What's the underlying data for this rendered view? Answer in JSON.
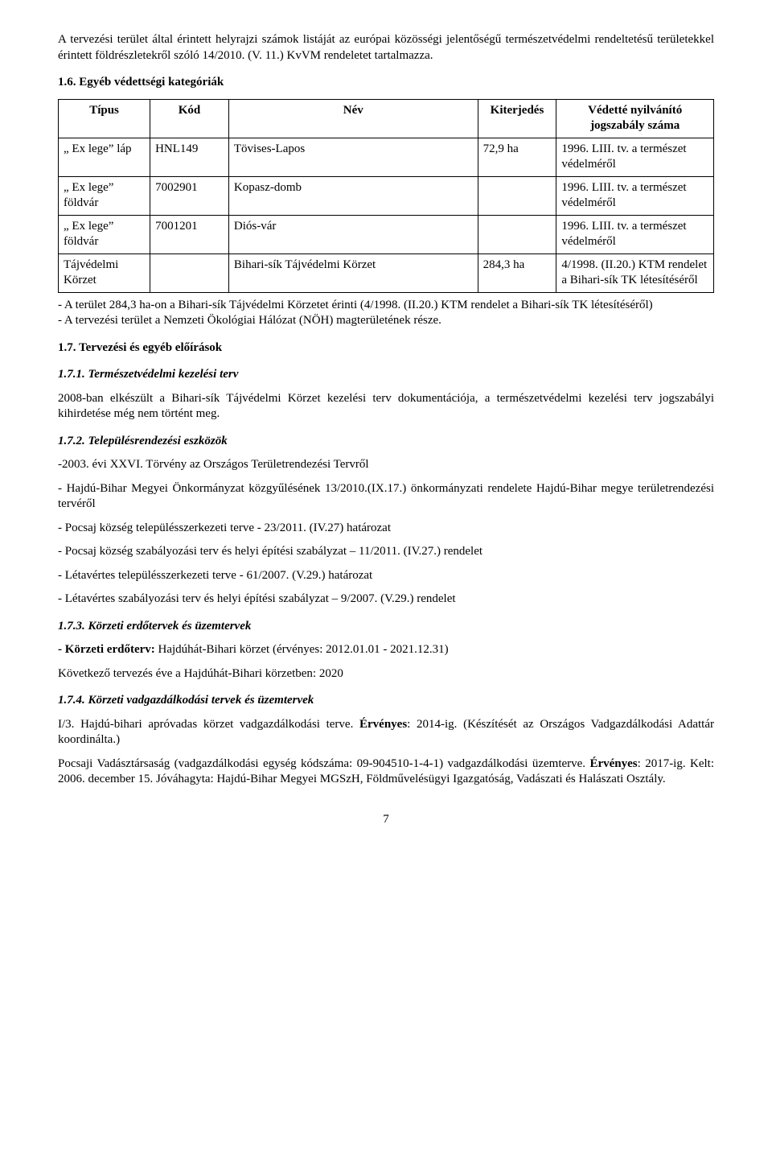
{
  "intro": "A tervezési terület által érintett helyrajzi számok listáját az európai közösségi jelentőségű természetvédelmi rendeltetésű területekkel érintett földrészletekről szóló 14/2010. (V. 11.) KvVM rendeletet tartalmazza.",
  "sec_1_6": "1.6. Egyéb védettségi kategóriák",
  "table": {
    "headers": {
      "tipus": "Típus",
      "kod": "Kód",
      "nev": "Név",
      "kiterjedes": "Kiterjedés",
      "jogszabaly": "Védetté nyilvánító jogszabály száma"
    },
    "rows": [
      {
        "tipus": "„ Ex lege” láp",
        "kod": "HNL149",
        "nev": "Tövises-Lapos",
        "kit": "72,9 ha",
        "jog": "1996. LIII. tv. a természet védelméről"
      },
      {
        "tipus": "„ Ex lege” földvár",
        "kod": "7002901",
        "nev": "Kopasz-domb",
        "kit": "",
        "jog": "1996. LIII. tv. a természet védelméről"
      },
      {
        "tipus": "„ Ex lege” földvár",
        "kod": "7001201",
        "nev": "Diós-vár",
        "kit": "",
        "jog": "1996. LIII. tv. a természet védelméről"
      },
      {
        "tipus": "Tájvédelmi Körzet",
        "kod": "",
        "nev": "Bihari-sík Tájvédelmi Körzet",
        "kit": "284,3 ha",
        "jog": "4/1998. (II.20.) KTM rendelet a Bihari-sík TK létesítéséről"
      }
    ]
  },
  "after_table_p1": "- A terület 284,3 ha-on a Bihari-sík Tájvédelmi Körzetet érinti (4/1998. (II.20.) KTM rendelet a Bihari-sík TK létesítéséről)",
  "after_table_p2": "- A tervezési terület a Nemzeti Ökológiai Hálózat (NÖH) magterületének része.",
  "sec_1_7": "1.7. Tervezési és egyéb előírások",
  "sub_1_7_1": "1.7.1. Természetvédelmi kezelési terv",
  "p_1_7_1": "2008-ban elkészült a Bihari-sík Tájvédelmi Körzet kezelési terv dokumentációja, a természetvédelmi kezelési terv jogszabályi kihirdetése még nem történt meg.",
  "sub_1_7_2": "1.7.2. Településrendezési eszközök",
  "p_1_7_2_a": "-2003. évi XXVI. Törvény az Országos Területrendezési Tervről",
  "p_1_7_2_b": "- Hajdú-Bihar Megyei Önkormányzat közgyűlésének 13/2010.(IX.17.) önkormányzati rendelete Hajdú-Bihar megye területrendezési tervéről",
  "p_1_7_2_c": "- Pocsaj község településszerkezeti terve - 23/2011. (IV.27) határozat",
  "p_1_7_2_d": "- Pocsaj község szabályozási terv és helyi építési szabályzat – 11/2011. (IV.27.) rendelet",
  "p_1_7_2_e": "- Létavértes településszerkezeti terve - 61/2007. (V.29.) határozat",
  "p_1_7_2_f": "- Létavértes szabályozási terv és helyi építési szabályzat – 9/2007. (V.29.) rendelet",
  "sub_1_7_3": "1.7.3. Körzeti erdőtervek és üzemtervek",
  "p_1_7_3_a_label": "- Körzeti erdőterv:",
  "p_1_7_3_a_rest": " Hajdúhát-Bihari körzet (érvényes: 2012.01.01 - 2021.12.31)",
  "p_1_7_3_b": "Következő tervezés éve a Hajdúhát-Bihari körzetben: 2020",
  "sub_1_7_4": "1.7.4. Körzeti vadgazdálkodási tervek és üzemtervek",
  "p_1_7_4_a_pre": "I/3. Hajdú-bihari apróvadas körzet vadgazdálkodási terve. ",
  "p_1_7_4_a_erv": "Érvényes",
  "p_1_7_4_a_post": ": 2014-ig. (Készítését az Országos Vadgazdálkodási Adattár koordinálta.)",
  "p_1_7_4_b_pre": "Pocsaji Vadásztársaság (vadgazdálkodási egység kódszáma: 09-904510-1-4-1) vadgazdálkodási üzemterve. ",
  "p_1_7_4_b_erv": "Érvényes",
  "p_1_7_4_b_post": ": 2017-ig. Kelt: 2006. december 15. Jóváhagyta: Hajdú-Bihar Megyei MGSzH, Földművelésügyi Igazgatóság, Vadászati és Halászati Osztály.",
  "page_number": "7"
}
